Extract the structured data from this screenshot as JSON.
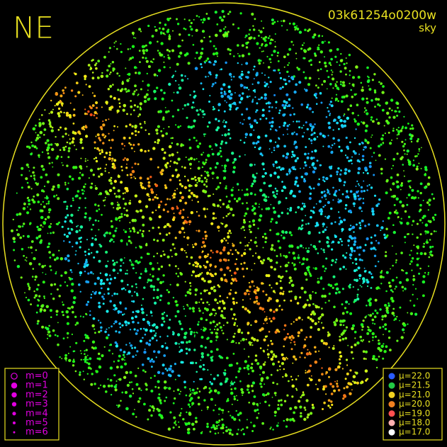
{
  "corner_label": "NE",
  "header": {
    "id": "03k61254o0200w",
    "mode": "sky"
  },
  "magnitude_legend": {
    "color": "#e000e0",
    "items": [
      {
        "label": "m=0"
      },
      {
        "label": "m=1"
      },
      {
        "label": "m=2"
      },
      {
        "label": "m=3"
      },
      {
        "label": "m=4"
      },
      {
        "label": "m=5"
      },
      {
        "label": "m=6"
      }
    ]
  },
  "brightness_legend": {
    "items": [
      {
        "label": "μ=22.0",
        "color": "#2a5cff"
      },
      {
        "label": "μ=21.5",
        "color": "#22cc44"
      },
      {
        "label": "μ=21.0",
        "color": "#f0d020"
      },
      {
        "label": "μ=20.0",
        "color": "#f08020"
      },
      {
        "label": "μ=19.0",
        "color": "#ff5050"
      },
      {
        "label": "μ=18.0",
        "color": "#ffb0b0"
      },
      {
        "label": "μ=17.0",
        "color": "#ffffff"
      }
    ]
  }
}
